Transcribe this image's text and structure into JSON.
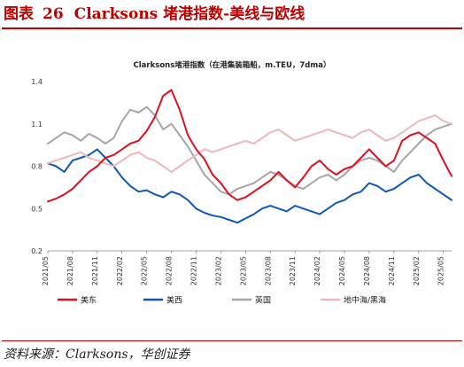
{
  "figure": {
    "label": "图表",
    "number": "26",
    "title": "Clarksons 堵港指数-美线与欧线",
    "source": "资料来源：Clarksons，华创证券"
  },
  "chart_data": {
    "type": "line",
    "title": "Clarksons堵港指数（在港集装箱船，m.TEU，7dma）",
    "xlabel": "",
    "ylabel": "",
    "ylim": [
      0.2,
      1.4
    ],
    "yticks": [
      "0.2",
      "0.5",
      "0.8",
      "1.1",
      "1.4"
    ],
    "ytick_values": [
      0.2,
      0.5,
      0.8,
      1.1,
      1.4
    ],
    "xlim": [
      "2021-05",
      "2025-06"
    ],
    "xticks": [
      "2021/05",
      "2021/08",
      "2021/11",
      "2022/02",
      "2022/05",
      "2022/08",
      "2022/11",
      "2023/02",
      "2023/05",
      "2023/08",
      "2023/11",
      "2024/02",
      "2024/05",
      "2024/08",
      "2024/11",
      "2025/02",
      "2025/05"
    ],
    "grid": false,
    "legend_position": "bottom",
    "series": [
      {
        "name": "美东",
        "color": "#e0101e",
        "x": [
          "2021-05",
          "2021-06",
          "2021-07",
          "2021-08",
          "2021-09",
          "2021-10",
          "2021-11",
          "2021-12",
          "2022-01",
          "2022-02",
          "2022-03",
          "2022-04",
          "2022-05",
          "2022-06",
          "2022-07",
          "2022-08",
          "2022-09",
          "2022-10",
          "2022-11",
          "2022-12",
          "2023-01",
          "2023-02",
          "2023-03",
          "2023-04",
          "2023-05",
          "2023-06",
          "2023-07",
          "2023-08",
          "2023-09",
          "2023-10",
          "2023-11",
          "2023-12",
          "2024-01",
          "2024-02",
          "2024-03",
          "2024-04",
          "2024-05",
          "2024-06",
          "2024-07",
          "2024-08",
          "2024-09",
          "2024-10",
          "2024-11",
          "2024-12",
          "2025-01",
          "2025-02",
          "2025-03",
          "2025-04",
          "2025-05",
          "2025-06"
        ],
        "values": [
          0.55,
          0.57,
          0.6,
          0.64,
          0.7,
          0.76,
          0.8,
          0.86,
          0.88,
          0.92,
          0.96,
          0.98,
          1.05,
          1.15,
          1.3,
          1.34,
          1.2,
          1.02,
          0.92,
          0.85,
          0.74,
          0.68,
          0.6,
          0.56,
          0.58,
          0.62,
          0.66,
          0.7,
          0.76,
          0.7,
          0.65,
          0.72,
          0.8,
          0.84,
          0.78,
          0.74,
          0.78,
          0.8,
          0.86,
          0.92,
          0.86,
          0.8,
          0.84,
          0.98,
          1.02,
          1.04,
          1.0,
          0.96,
          0.84,
          0.73
        ]
      },
      {
        "name": "美西",
        "color": "#1057b8",
        "x": [
          "2021-05",
          "2021-06",
          "2021-07",
          "2021-08",
          "2021-09",
          "2021-10",
          "2021-11",
          "2021-12",
          "2022-01",
          "2022-02",
          "2022-03",
          "2022-04",
          "2022-05",
          "2022-06",
          "2022-07",
          "2022-08",
          "2022-09",
          "2022-10",
          "2022-11",
          "2022-12",
          "2023-01",
          "2023-02",
          "2023-03",
          "2023-04",
          "2023-05",
          "2023-06",
          "2023-07",
          "2023-08",
          "2023-09",
          "2023-10",
          "2023-11",
          "2023-12",
          "2024-01",
          "2024-02",
          "2024-03",
          "2024-04",
          "2024-05",
          "2024-06",
          "2024-07",
          "2024-08",
          "2024-09",
          "2024-10",
          "2024-11",
          "2024-12",
          "2025-01",
          "2025-02",
          "2025-03",
          "2025-04",
          "2025-05",
          "2025-06"
        ],
        "values": [
          0.82,
          0.8,
          0.76,
          0.84,
          0.86,
          0.88,
          0.92,
          0.86,
          0.8,
          0.72,
          0.66,
          0.62,
          0.63,
          0.6,
          0.58,
          0.62,
          0.6,
          0.56,
          0.5,
          0.47,
          0.45,
          0.44,
          0.42,
          0.4,
          0.43,
          0.46,
          0.5,
          0.52,
          0.5,
          0.48,
          0.52,
          0.5,
          0.48,
          0.46,
          0.5,
          0.54,
          0.56,
          0.6,
          0.62,
          0.68,
          0.66,
          0.62,
          0.64,
          0.68,
          0.72,
          0.74,
          0.68,
          0.64,
          0.6,
          0.56
        ]
      },
      {
        "name": "英国",
        "color": "#a6a6a6",
        "x": [
          "2021-05",
          "2021-06",
          "2021-07",
          "2021-08",
          "2021-09",
          "2021-10",
          "2021-11",
          "2021-12",
          "2022-01",
          "2022-02",
          "2022-03",
          "2022-04",
          "2022-05",
          "2022-06",
          "2022-07",
          "2022-08",
          "2022-09",
          "2022-10",
          "2022-11",
          "2022-12",
          "2023-01",
          "2023-02",
          "2023-03",
          "2023-04",
          "2023-05",
          "2023-06",
          "2023-07",
          "2023-08",
          "2023-09",
          "2023-10",
          "2023-11",
          "2023-12",
          "2024-01",
          "2024-02",
          "2024-03",
          "2024-04",
          "2024-05",
          "2024-06",
          "2024-07",
          "2024-08",
          "2024-09",
          "2024-10",
          "2024-11",
          "2024-12",
          "2025-01",
          "2025-02",
          "2025-03",
          "2025-04",
          "2025-05",
          "2025-06"
        ],
        "values": [
          0.96,
          1.0,
          1.04,
          1.02,
          0.98,
          1.03,
          1.0,
          0.96,
          1.0,
          1.12,
          1.2,
          1.18,
          1.22,
          1.16,
          1.06,
          1.1,
          1.02,
          0.94,
          0.84,
          0.74,
          0.68,
          0.62,
          0.6,
          0.64,
          0.66,
          0.68,
          0.72,
          0.76,
          0.74,
          0.7,
          0.66,
          0.64,
          0.68,
          0.72,
          0.74,
          0.7,
          0.74,
          0.8,
          0.84,
          0.86,
          0.84,
          0.8,
          0.76,
          0.84,
          0.9,
          0.96,
          1.02,
          1.06,
          1.08,
          1.1
        ]
      },
      {
        "name": "地中海/黑海",
        "color": "#efb7b9",
        "x": [
          "2021-05",
          "2021-06",
          "2021-07",
          "2021-08",
          "2021-09",
          "2021-10",
          "2021-11",
          "2021-12",
          "2022-01",
          "2022-02",
          "2022-03",
          "2022-04",
          "2022-05",
          "2022-06",
          "2022-07",
          "2022-08",
          "2022-09",
          "2022-10",
          "2022-11",
          "2022-12",
          "2023-01",
          "2023-02",
          "2023-03",
          "2023-04",
          "2023-05",
          "2023-06",
          "2023-07",
          "2023-08",
          "2023-09",
          "2023-10",
          "2023-11",
          "2023-12",
          "2024-01",
          "2024-02",
          "2024-03",
          "2024-04",
          "2024-05",
          "2024-06",
          "2024-07",
          "2024-08",
          "2024-09",
          "2024-10",
          "2024-11",
          "2024-12",
          "2025-01",
          "2025-02",
          "2025-03",
          "2025-04",
          "2025-05",
          "2025-06"
        ],
        "values": [
          0.82,
          0.84,
          0.86,
          0.88,
          0.9,
          0.86,
          0.84,
          0.82,
          0.8,
          0.84,
          0.88,
          0.9,
          0.86,
          0.84,
          0.8,
          0.76,
          0.8,
          0.84,
          0.88,
          0.92,
          0.9,
          0.92,
          0.94,
          0.96,
          0.98,
          0.96,
          1.0,
          1.04,
          1.06,
          1.02,
          0.98,
          1.0,
          1.02,
          1.04,
          1.06,
          1.04,
          1.02,
          1.0,
          1.04,
          1.06,
          1.02,
          0.98,
          1.0,
          1.04,
          1.08,
          1.12,
          1.14,
          1.16,
          1.12,
          1.1
        ]
      }
    ]
  }
}
